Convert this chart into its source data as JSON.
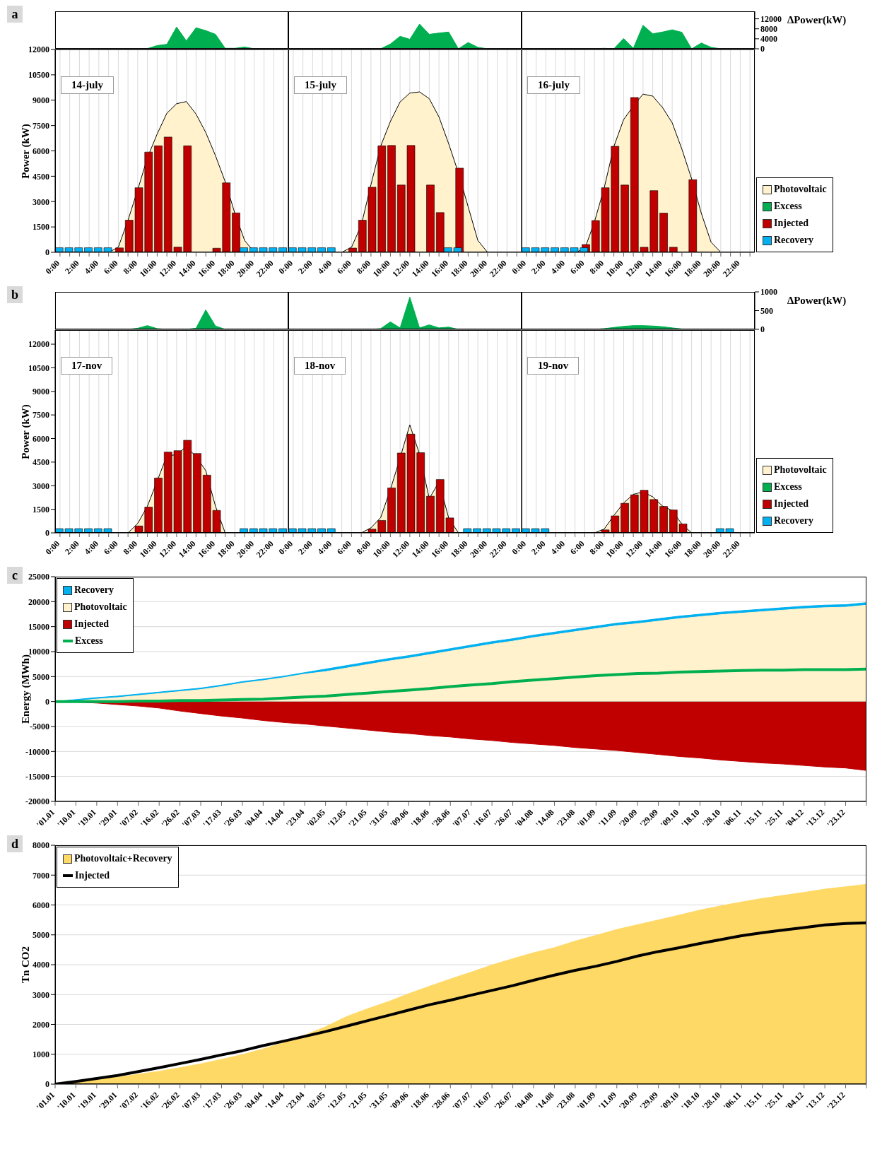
{
  "chart_data": [
    {
      "type": "area",
      "categories": [
        null,
        null,
        null,
        null,
        null,
        null,
        null,
        null,
        null,
        null,
        null,
        null,
        null,
        null,
        null,
        null,
        null,
        null,
        null,
        null,
        null,
        null,
        null,
        null,
        null,
        null,
        null,
        null,
        null,
        null,
        null,
        null,
        null,
        null,
        null,
        null,
        null,
        null,
        null,
        null,
        null,
        null,
        null,
        null,
        null,
        null,
        null,
        null,
        null,
        null,
        null,
        null,
        null,
        null,
        null,
        null,
        null,
        null,
        null,
        null,
        null,
        null,
        null,
        null,
        null,
        null,
        null,
        null,
        null,
        null,
        null,
        null
      ],
      "ylim": [
        0,
        15000
      ],
      "yticks": [
        0,
        4000,
        8000,
        12000
      ],
      "tick_labels": "y",
      "grid": "x",
      "legend": "right",
      "ylabel": "∆Power(kW)",
      "annotations": [
        "a"
      ],
      "series": [
        {
          "name": "Excess",
          "color": "#00b050",
          "values": [
            0,
            0,
            0,
            0,
            0,
            0,
            0,
            0,
            0,
            100,
            1300,
            1800,
            8700,
            3200,
            8400,
            7300,
            5800,
            200,
            200,
            700,
            0,
            0,
            0,
            0,
            0,
            0,
            0,
            0,
            0,
            0,
            0,
            0,
            0,
            0,
            1900,
            5000,
            3800,
            9900,
            5800,
            6300,
            6700,
            0,
            2500,
            600,
            0,
            0,
            0,
            0,
            0,
            0,
            0,
            0,
            0,
            0,
            0,
            0,
            200,
            0,
            4100,
            200,
            9400,
            6000,
            6700,
            7600,
            6600,
            0,
            2300,
            600,
            0,
            0,
            0,
            0
          ]
        }
      ]
    },
    {
      "type": "bar",
      "categories": [
        "0:00",
        null,
        "2:00",
        null,
        "4:00",
        null,
        "6:00",
        null,
        "8:00",
        null,
        "10:00",
        null,
        "12:00",
        null,
        "14:00",
        null,
        "16:00",
        null,
        "18:00",
        null,
        "20:00",
        null,
        "22:00",
        null
      ],
      "ylim": [
        0,
        12000
      ],
      "yticks": [
        0,
        1500,
        3000,
        4500,
        6000,
        7500,
        9000,
        10500,
        12000
      ],
      "ylabel": "Power (kW)",
      "grid": "x",
      "annotations": [
        "14-july"
      ],
      "series": [
        {
          "type": "area",
          "color": "#fff2cc",
          "values": [
            0,
            0,
            0,
            0,
            0,
            0,
            300,
            1900,
            3700,
            5600,
            7000,
            8230,
            8790,
            8920,
            8180,
            7090,
            5720,
            4180,
            2300,
            700,
            0,
            0,
            0,
            0
          ]
        },
        {
          "color": "#c00000",
          "values": [
            0,
            0,
            0,
            0,
            0,
            0,
            260,
            1900,
            3820,
            5930,
            6300,
            6820,
            310,
            6300,
            0,
            0,
            240,
            4110,
            2330,
            0,
            0,
            0,
            0,
            0
          ]
        },
        {
          "color": "#00b0f0",
          "values": [
            270,
            270,
            270,
            270,
            270,
            270,
            0,
            0,
            0,
            0,
            0,
            0,
            0,
            0,
            0,
            0,
            0,
            0,
            0,
            270,
            270,
            270,
            270,
            270
          ]
        }
      ]
    },
    {
      "type": "bar",
      "categories": [
        "0:00",
        null,
        "2:00",
        null,
        "4:00",
        null,
        "6:00",
        null,
        "8:00",
        null,
        "10:00",
        null,
        "12:00",
        null,
        "14:00",
        null,
        "16:00",
        null,
        "18:00",
        null,
        "20:00",
        null,
        "22:00",
        null
      ],
      "ylim": [
        0,
        12000
      ],
      "tick_labels": "x",
      "grid": "x",
      "annotations": [
        "15-july"
      ],
      "series": [
        {
          "type": "area",
          "color": "#fff2cc",
          "values": [
            0,
            0,
            0,
            0,
            0,
            0,
            300,
            1600,
            4000,
            6280,
            7740,
            8900,
            9420,
            9490,
            9090,
            8010,
            6420,
            4700,
            2700,
            700,
            0,
            0,
            0,
            0
          ]
        },
        {
          "color": "#c00000",
          "values": [
            0,
            0,
            0,
            0,
            0,
            0,
            250,
            1900,
            3850,
            6300,
            6320,
            3980,
            6320,
            0,
            3980,
            2350,
            0,
            4980,
            0,
            0,
            0,
            0,
            0,
            0
          ]
        },
        {
          "color": "#00b0f0",
          "values": [
            270,
            270,
            270,
            270,
            270,
            0,
            0,
            0,
            0,
            0,
            0,
            0,
            0,
            0,
            0,
            0,
            270,
            270,
            0,
            0,
            0,
            0,
            0,
            0
          ]
        }
      ]
    },
    {
      "type": "bar",
      "categories": [
        "0:00",
        null,
        "2:00",
        null,
        "4:00",
        null,
        "6:00",
        null,
        "8:00",
        null,
        "10:00",
        null,
        "12:00",
        null,
        "14:00",
        null,
        "16:00",
        null,
        "18:00",
        null,
        "20:00",
        null,
        "22:00",
        null
      ],
      "ylim": [
        0,
        12000
      ],
      "tick_labels": "x",
      "grid": "x",
      "legend": "right",
      "annotations": [
        "16-july"
      ],
      "series": [
        {
          "name": "Photovoltaic",
          "type": "area",
          "color": "#fff2cc",
          "values": [
            0,
            0,
            0,
            0,
            0,
            0,
            200,
            1800,
            3800,
            6260,
            7850,
            8650,
            9360,
            9240,
            8570,
            7660,
            6100,
            4350,
            2300,
            600,
            0,
            0,
            0,
            0
          ]
        },
        {
          "name": "Injected",
          "color": "#c00000",
          "values": [
            0,
            0,
            0,
            0,
            0,
            0,
            460,
            1880,
            3820,
            6270,
            3980,
            9160,
            300,
            3650,
            2320,
            300,
            0,
            4300,
            0,
            0,
            0,
            0,
            0,
            0
          ]
        },
        {
          "name": "Recovery",
          "color": "#00b0f0",
          "values": [
            270,
            270,
            270,
            270,
            270,
            270,
            270,
            0,
            0,
            0,
            0,
            0,
            0,
            0,
            0,
            0,
            0,
            0,
            0,
            0,
            0,
            0,
            0,
            0
          ]
        }
      ]
    },
    {
      "type": "area",
      "categories": [
        null,
        null,
        null,
        null,
        null,
        null,
        null,
        null,
        null,
        null,
        null,
        null,
        null,
        null,
        null,
        null,
        null,
        null,
        null,
        null,
        null,
        null,
        null,
        null,
        null,
        null,
        null,
        null,
        null,
        null,
        null,
        null,
        null,
        null,
        null,
        null,
        null,
        null,
        null,
        null,
        null,
        null,
        null,
        null,
        null,
        null,
        null,
        null,
        null,
        null,
        null,
        null,
        null,
        null,
        null,
        null,
        null,
        null,
        null,
        null,
        null,
        null,
        null,
        null,
        null,
        null,
        null,
        null,
        null,
        null,
        null,
        null
      ],
      "ylim": [
        0,
        1000
      ],
      "yticks": [
        0,
        500,
        1000
      ],
      "tick_labels": "y",
      "grid": "x",
      "legend": "right",
      "ylabel": "∆Power(kW)",
      "annotations": [
        "b"
      ],
      "series": [
        {
          "name": "Excess",
          "color": "#00b050",
          "values": [
            0,
            0,
            0,
            0,
            0,
            0,
            0,
            0,
            30,
            100,
            20,
            0,
            0,
            0,
            30,
            520,
            90,
            0,
            0,
            0,
            0,
            0,
            0,
            0,
            0,
            0,
            0,
            0,
            0,
            0,
            0,
            0,
            0,
            20,
            200,
            40,
            860,
            40,
            120,
            40,
            60,
            0,
            0,
            0,
            0,
            0,
            0,
            0,
            0,
            0,
            0,
            0,
            0,
            0,
            0,
            0,
            20,
            50,
            80,
            100,
            100,
            90,
            70,
            40,
            10,
            0,
            0,
            0,
            0,
            0,
            0,
            0
          ]
        }
      ]
    },
    {
      "type": "bar",
      "categories": [
        "0:00",
        null,
        "2:00",
        null,
        "4:00",
        null,
        "6:00",
        null,
        "8:00",
        null,
        "10:00",
        null,
        "12:00",
        null,
        "14:00",
        null,
        "16:00",
        null,
        "18:00",
        null,
        "20:00",
        null,
        "22:00",
        null
      ],
      "ylim": [
        0,
        12900
      ],
      "yticks": [
        0,
        1500,
        3000,
        4500,
        6000,
        7500,
        9000,
        10500,
        12000
      ],
      "ylabel": "Power (kW)",
      "grid": "x",
      "annotations": [
        "17-nov"
      ],
      "series": [
        {
          "type": "area",
          "color": "#fff2cc",
          "values": [
            0,
            0,
            0,
            0,
            0,
            0,
            0,
            0,
            600,
            1700,
            3300,
            4900,
            4970,
            5490,
            4850,
            3960,
            1700,
            0,
            0,
            0,
            0,
            0,
            0,
            0
          ]
        },
        {
          "color": "#c00000",
          "values": [
            0,
            0,
            0,
            0,
            0,
            0,
            0,
            0,
            440,
            1640,
            3490,
            5140,
            5230,
            5890,
            5050,
            3670,
            1430,
            0,
            0,
            0,
            0,
            0,
            0,
            0
          ]
        },
        {
          "color": "#00b0f0",
          "values": [
            270,
            270,
            270,
            270,
            270,
            270,
            0,
            0,
            0,
            0,
            0,
            0,
            0,
            0,
            0,
            0,
            0,
            0,
            0,
            270,
            270,
            270,
            270,
            270
          ]
        }
      ]
    },
    {
      "type": "bar",
      "categories": [
        "0:00",
        null,
        "2:00",
        null,
        "4:00",
        null,
        "6:00",
        null,
        "8:00",
        null,
        "10:00",
        null,
        "12:00",
        null,
        "14:00",
        null,
        "16:00",
        null,
        "18:00",
        null,
        "20:00",
        null,
        "22:00",
        null
      ],
      "ylim": [
        0,
        12900
      ],
      "tick_labels": "x",
      "grid": "x",
      "annotations": [
        "18-nov"
      ],
      "series": [
        {
          "type": "area",
          "color": "#fff2cc",
          "values": [
            0,
            0,
            0,
            0,
            0,
            0,
            0,
            0,
            320,
            970,
            2750,
            4770,
            6870,
            5010,
            2180,
            3240,
            950,
            0,
            0,
            0,
            0,
            0,
            0,
            0
          ]
        },
        {
          "color": "#c00000",
          "values": [
            0,
            0,
            0,
            0,
            0,
            0,
            0,
            0,
            240,
            790,
            2860,
            5080,
            6280,
            5100,
            2330,
            3390,
            950,
            0,
            0,
            0,
            0,
            0,
            0,
            0
          ]
        },
        {
          "color": "#00b0f0",
          "values": [
            270,
            270,
            270,
            270,
            270,
            0,
            0,
            0,
            0,
            0,
            0,
            0,
            0,
            0,
            0,
            0,
            0,
            0,
            270,
            270,
            270,
            270,
            270,
            270
          ]
        }
      ]
    },
    {
      "type": "bar",
      "categories": [
        "0:00",
        null,
        "2:00",
        null,
        "4:00",
        null,
        "6:00",
        null,
        "8:00",
        null,
        "10:00",
        null,
        "12:00",
        null,
        "14:00",
        null,
        "16:00",
        null,
        "18:00",
        null,
        "20:00",
        null,
        "22:00",
        null
      ],
      "ylim": [
        0,
        12900
      ],
      "tick_labels": "x",
      "grid": "x",
      "legend": "right",
      "annotations": [
        "19-nov"
      ],
      "series": [
        {
          "name": "Photovoltaic",
          "type": "area",
          "color": "#fff2cc",
          "values": [
            0,
            0,
            0,
            0,
            0,
            0,
            0,
            0,
            240,
            1110,
            1900,
            2450,
            2610,
            2290,
            1710,
            1420,
            550,
            0,
            0,
            0,
            0,
            0,
            0,
            0
          ]
        },
        {
          "name": "Injected",
          "color": "#c00000",
          "values": [
            0,
            0,
            0,
            0,
            0,
            0,
            0,
            0,
            190,
            1080,
            1880,
            2420,
            2710,
            2120,
            1680,
            1460,
            570,
            0,
            0,
            0,
            0,
            0,
            0,
            0
          ]
        },
        {
          "name": "Recovery",
          "color": "#00b0f0",
          "values": [
            270,
            270,
            270,
            0,
            0,
            0,
            0,
            0,
            0,
            0,
            0,
            0,
            0,
            0,
            0,
            0,
            0,
            0,
            0,
            0,
            270,
            270,
            0,
            0
          ]
        }
      ]
    },
    {
      "type": "area",
      "categories": [
        "'01.01",
        "'10.01",
        "'19.01",
        "'29.01",
        "'07.02",
        "'16.02",
        "'26.02",
        "'07.03",
        "'17.03",
        "'26.03",
        "'04.04",
        "'14.04",
        "'23.04",
        "'02.05",
        "'12.05",
        "'21.05",
        "'31.05",
        "'09.06",
        "'18.06",
        "'28.06",
        "'07.07",
        "'16.07",
        "'26.07",
        "'04.08",
        "'14.08",
        "'23.08",
        "'01.09",
        "'11.09",
        "'20.09",
        "'29.09",
        "'09.10",
        "'18.10",
        "'28.10",
        "'06.11",
        "'15.11",
        "'25.11",
        "'04.12",
        "'13.12",
        "'23.12",
        null
      ],
      "ylim": [
        -20000,
        25000
      ],
      "yticks": [
        -20000,
        -15000,
        -10000,
        -5000,
        0,
        5000,
        10000,
        15000,
        20000,
        25000
      ],
      "ylabel": "Energy (MWh)",
      "grid": "y",
      "legend": "top left",
      "annotations": [
        "c"
      ],
      "series": [
        {
          "name": "Recovery",
          "color": "#00b0f0",
          "values": [
            0,
            400,
            800,
            1100,
            1500,
            1900,
            2300,
            2700,
            3300,
            4000,
            4500,
            5100,
            5800,
            6500,
            7200,
            7900,
            8600,
            9200,
            9900,
            10600,
            11300,
            12000,
            12600,
            13300,
            13900,
            14500,
            15100,
            15700,
            16100,
            16600,
            17100,
            17500,
            17900,
            18200,
            18500,
            18800,
            19100,
            19300,
            19400,
            19800
          ]
        },
        {
          "name": "Photovoltaic",
          "color": "#fff2cc",
          "values": [
            0,
            100,
            500,
            800,
            1200,
            1600,
            2000,
            2400,
            3000,
            3700,
            4200,
            4800,
            5500,
            6000,
            6700,
            7400,
            8100,
            8700,
            9400,
            10100,
            10800,
            11500,
            12100,
            12800,
            13400,
            14000,
            14600,
            15200,
            15600,
            16100,
            16600,
            17000,
            17400,
            17700,
            18000,
            18300,
            18600,
            18800,
            18900,
            19300
          ]
        },
        {
          "name": "Injected",
          "color": "#c00000",
          "values": [
            0,
            -100,
            -300,
            -600,
            -900,
            -1300,
            -1900,
            -2400,
            -2900,
            -3300,
            -3800,
            -4200,
            -4500,
            -4900,
            -5300,
            -5700,
            -6100,
            -6400,
            -6800,
            -7100,
            -7500,
            -7800,
            -8200,
            -8500,
            -8800,
            -9200,
            -9500,
            -9800,
            -10200,
            -10600,
            -11000,
            -11300,
            -11700,
            -12000,
            -12300,
            -12500,
            -12800,
            -13100,
            -13300,
            -13800
          ]
        },
        {
          "name": "Excess",
          "type": "line",
          "color": "#00b050",
          "values": [
            0,
            0,
            0,
            0,
            100,
            100,
            200,
            200,
            300,
            400,
            500,
            700,
            900,
            1100,
            1400,
            1700,
            2000,
            2300,
            2600,
            3000,
            3300,
            3600,
            4000,
            4300,
            4600,
            4900,
            5200,
            5400,
            5600,
            5700,
            5900,
            6000,
            6100,
            6200,
            6300,
            6300,
            6400,
            6400,
            6400,
            6500
          ]
        }
      ]
    },
    {
      "type": "area",
      "categories": [
        "'01.01",
        "'10.01",
        "'19.01",
        "'29.01",
        "'07.02",
        "'16.02",
        "'26.02",
        "'07.03",
        "'17.03",
        "'26.03",
        "'04.04",
        "'14.04",
        "'23.04",
        "'02.05",
        "'12.05",
        "'21.05",
        "'31.05",
        "'09.06",
        "'18.06",
        "'28.06",
        "'07.07",
        "'16.07",
        "'26.07",
        "'04.08",
        "'14.08",
        "'23.08",
        "'01.09",
        "'11.09",
        "'20.09",
        "'29.09",
        "'09.10",
        "'18.10",
        "'28.10",
        "'06.11",
        "'15.11",
        "'25.11",
        "'04.12",
        "'13.12",
        "'23.12",
        null
      ],
      "ylim": [
        0,
        8000
      ],
      "yticks": [
        0,
        1000,
        2000,
        3000,
        4000,
        5000,
        6000,
        7000,
        8000
      ],
      "ylabel": "Tn CO2",
      "grid": "y",
      "legend": "top left",
      "annotations": [
        "d"
      ],
      "series": [
        {
          "name": "Photovoltaic+Recovery",
          "color": "#ffd966",
          "values": [
            0,
            60,
            150,
            230,
            330,
            430,
            550,
            680,
            830,
            990,
            1180,
            1390,
            1640,
            1920,
            2260,
            2520,
            2760,
            3030,
            3280,
            3520,
            3750,
            3990,
            4200,
            4400,
            4570,
            4790,
            4980,
            5180,
            5340,
            5500,
            5660,
            5830,
            5970,
            6100,
            6220,
            6320,
            6420,
            6530,
            6610,
            6690
          ]
        },
        {
          "name": "Injected",
          "type": "line",
          "color": "#000000",
          "values": [
            0,
            90,
            190,
            290,
            420,
            550,
            690,
            830,
            980,
            1120,
            1290,
            1440,
            1600,
            1760,
            1940,
            2120,
            2300,
            2480,
            2660,
            2810,
            2980,
            3140,
            3300,
            3480,
            3650,
            3810,
            3950,
            4110,
            4290,
            4440,
            4570,
            4710,
            4840,
            4970,
            5070,
            5160,
            5240,
            5330,
            5380,
            5400
          ]
        }
      ]
    }
  ]
}
